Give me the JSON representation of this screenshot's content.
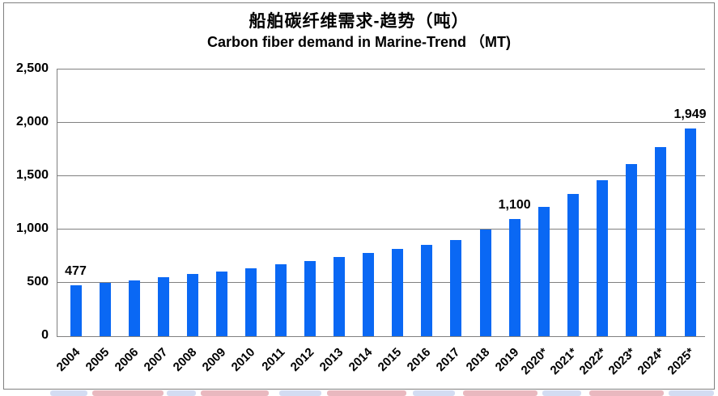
{
  "chart_data": {
    "type": "bar",
    "title": "船舶碳纤维需求-趋势（吨）",
    "subtitle": "Carbon fiber demand in Marine-Trend （MT)",
    "categories": [
      "2004",
      "2005",
      "2006",
      "2007",
      "2008",
      "2009",
      "2010",
      "2011",
      "2012",
      "2013",
      "2014",
      "2015",
      "2016",
      "2017",
      "2018",
      "2019",
      "2020*",
      "2021*",
      "2022*",
      "2023*",
      "2024*",
      "2025*"
    ],
    "values": [
      477,
      501,
      526,
      552,
      580,
      609,
      639,
      671,
      705,
      740,
      777,
      816,
      857,
      900,
      1000,
      1100,
      1210,
      1331,
      1464,
      1611,
      1772,
      1949
    ],
    "data_labels": [
      {
        "index": 0,
        "text": "477"
      },
      {
        "index": 15,
        "text": "1,100"
      },
      {
        "index": 21,
        "text": "1,949"
      }
    ],
    "xlabel": "",
    "ylabel": "",
    "ylim": [
      0,
      2500
    ],
    "y_tick_step": 500,
    "y_ticks_top_down": [
      "2,500",
      "2,000",
      "1,500",
      "1,000",
      "500",
      "0"
    ],
    "grid": true,
    "legend": "none",
    "bar_color": "#0a68f4",
    "gridline_color": "#808080",
    "axis_color": "#808080",
    "frame_border_color": "#808080",
    "text_color": "#000000"
  },
  "watermark": {
    "colors": {
      "red": "#cf6272",
      "blue": "#9db1e3"
    },
    "blobs": [
      [
        62,
        46,
        "blue"
      ],
      [
        114,
        88,
        "red"
      ],
      [
        206,
        36,
        "blue"
      ],
      [
        248,
        84,
        "red"
      ],
      [
        345,
        52,
        "blue"
      ],
      [
        404,
        98,
        "red"
      ],
      [
        510,
        52,
        "blue"
      ],
      [
        572,
        92,
        "red"
      ],
      [
        670,
        48,
        "blue"
      ],
      [
        728,
        92,
        "red"
      ],
      [
        826,
        56,
        "blue"
      ]
    ]
  }
}
